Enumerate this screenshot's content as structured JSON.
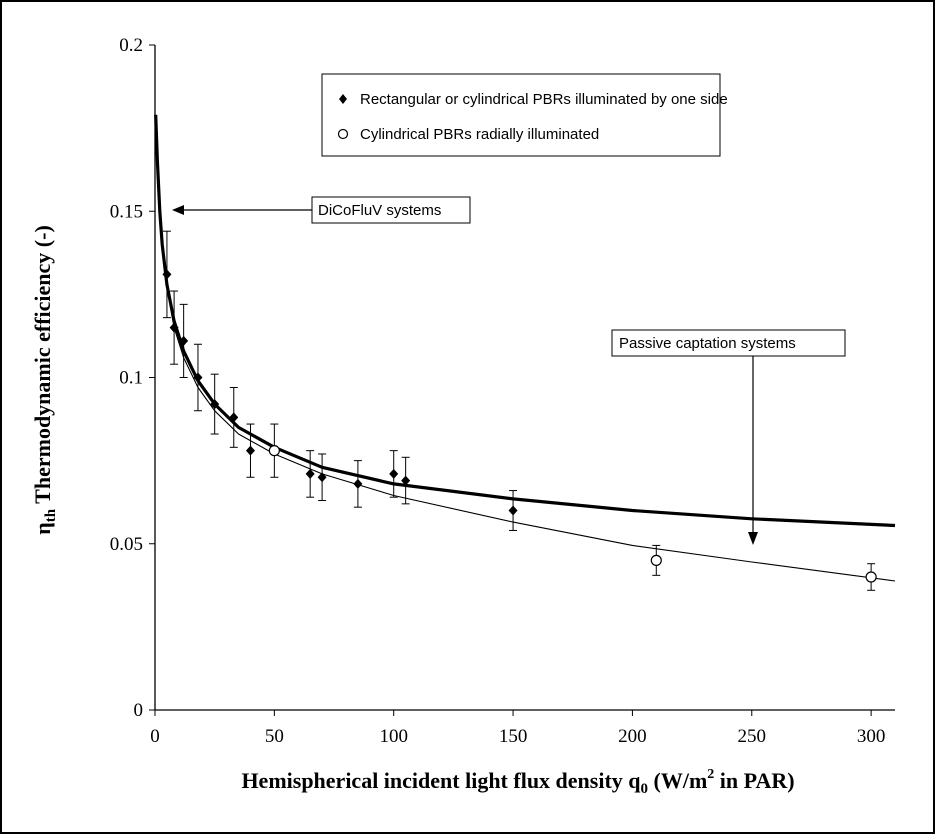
{
  "chart_data": {
    "type": "scatter",
    "xlabel_main": "Hemispherical incident light flux density q",
    "xlabel_sub": "0",
    "xlabel_rest_1": " (W/m",
    "xlabel_sup": "2",
    "xlabel_rest_2": " in PAR)",
    "ylabel_main": "η",
    "ylabel_sub": "th",
    "ylabel_rest": " Thermodynamic efficiency (-)",
    "xlim": [
      0,
      310
    ],
    "ylim": [
      0,
      0.2
    ],
    "x_ticks": [
      "0",
      "50",
      "100",
      "150",
      "200",
      "250",
      "300"
    ],
    "y_ticks": [
      "0",
      "0.05",
      "0.1",
      "0.15",
      "0.2"
    ],
    "legend_position": "top-center",
    "series": [
      {
        "name": "Rectangular or cylindrical PBRs illuminated by one side",
        "marker": "filled-diamond",
        "points": [
          {
            "x": 5,
            "y": 0.131,
            "err": 0.013
          },
          {
            "x": 8,
            "y": 0.115,
            "err": 0.011
          },
          {
            "x": 12,
            "y": 0.111,
            "err": 0.011
          },
          {
            "x": 18,
            "y": 0.1,
            "err": 0.01
          },
          {
            "x": 25,
            "y": 0.092,
            "err": 0.009
          },
          {
            "x": 33,
            "y": 0.088,
            "err": 0.009
          },
          {
            "x": 40,
            "y": 0.078,
            "err": 0.008
          },
          {
            "x": 65,
            "y": 0.071,
            "err": 0.007
          },
          {
            "x": 70,
            "y": 0.07,
            "err": 0.007
          },
          {
            "x": 85,
            "y": 0.068,
            "err": 0.007
          },
          {
            "x": 100,
            "y": 0.071,
            "err": 0.007
          },
          {
            "x": 105,
            "y": 0.069,
            "err": 0.007
          },
          {
            "x": 150,
            "y": 0.06,
            "err": 0.006
          }
        ]
      },
      {
        "name": "Cylindrical PBRs radially illuminated",
        "marker": "open-circle",
        "points": [
          {
            "x": 50,
            "y": 0.078,
            "err": 0.008
          },
          {
            "x": 210,
            "y": 0.045,
            "err": 0.0045
          },
          {
            "x": 300,
            "y": 0.04,
            "err": 0.004
          }
        ]
      }
    ],
    "fit_curves": [
      {
        "style": "thick",
        "points": [
          [
            0.3,
            0.179
          ],
          [
            1,
            0.165
          ],
          [
            2,
            0.15
          ],
          [
            3,
            0.14
          ],
          [
            5,
            0.128
          ],
          [
            8,
            0.117
          ],
          [
            12,
            0.108
          ],
          [
            18,
            0.099
          ],
          [
            25,
            0.092
          ],
          [
            35,
            0.085
          ],
          [
            50,
            0.079
          ],
          [
            70,
            0.073
          ],
          [
            100,
            0.068
          ],
          [
            150,
            0.0635
          ],
          [
            200,
            0.06
          ],
          [
            250,
            0.0575
          ],
          [
            310,
            0.0555
          ]
        ]
      },
      {
        "style": "thin",
        "points": [
          [
            0.3,
            0.179
          ],
          [
            1,
            0.165
          ],
          [
            2,
            0.15
          ],
          [
            3,
            0.14
          ],
          [
            5,
            0.127
          ],
          [
            8,
            0.115
          ],
          [
            12,
            0.106
          ],
          [
            18,
            0.097
          ],
          [
            25,
            0.09
          ],
          [
            35,
            0.083
          ],
          [
            50,
            0.077
          ],
          [
            70,
            0.071
          ],
          [
            100,
            0.0645
          ],
          [
            150,
            0.0565
          ],
          [
            200,
            0.0495
          ],
          [
            250,
            0.0445
          ],
          [
            310,
            0.0388
          ]
        ]
      }
    ],
    "annotations": [
      {
        "text": "DiCoFluV systems",
        "arrow_to_x": 3,
        "arrow_to_y": 0.15
      },
      {
        "text": "Passive captation systems",
        "arrow_to_x": 252,
        "arrow_to_y": 0.0485
      }
    ]
  }
}
